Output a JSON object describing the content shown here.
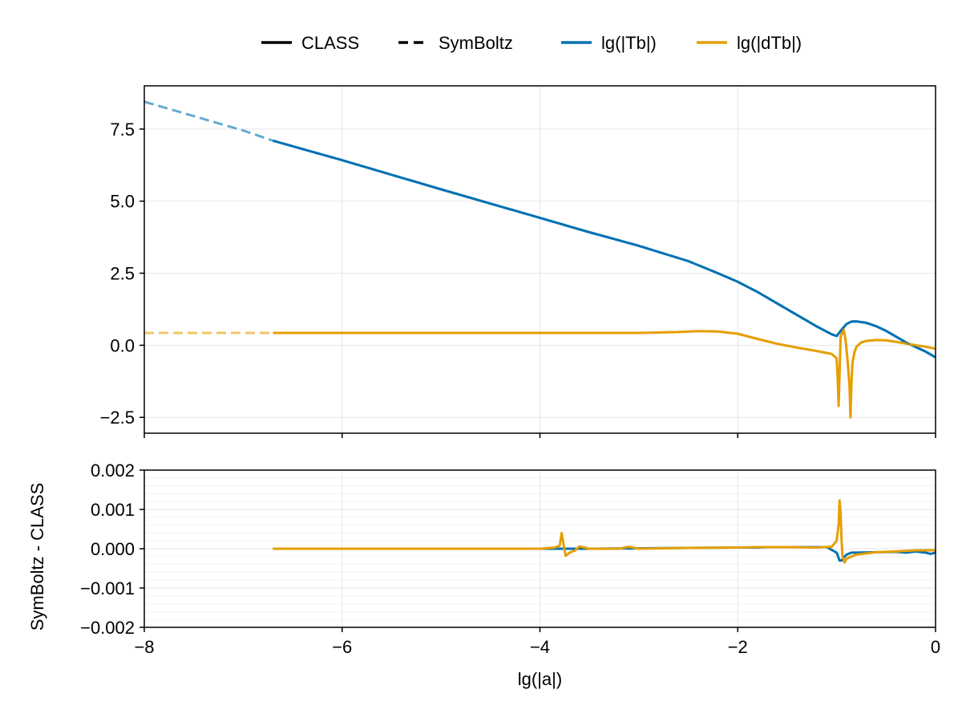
{
  "legend": {
    "placement": "top",
    "items": [
      {
        "label": "CLASS",
        "style": "solid",
        "color": "#000000"
      },
      {
        "label": "SymBoltz",
        "style": "dashed",
        "color": "#000000"
      },
      {
        "label": "lg(|Tb|)",
        "style": "solid",
        "color": "#0072b2"
      },
      {
        "label": "lg(|dTb|)",
        "style": "solid",
        "color": "#e69f00"
      }
    ]
  },
  "colors": {
    "tb": "#0072b2",
    "dtb": "#e69f00",
    "grid": "#e6e6e6",
    "minor_grid": "#f3f3f3"
  },
  "chart_data": [
    {
      "type": "line",
      "panel": "top",
      "xlim": [
        -8,
        0
      ],
      "ylim": [
        -3.05,
        9.0
      ],
      "xticks": [
        -8,
        -6,
        -4,
        -2,
        0
      ],
      "yticks": [
        -2.5,
        0.0,
        2.5,
        5.0,
        7.5
      ],
      "ytick_labels": [
        "−2.5",
        "0.0",
        "2.5",
        "5.0",
        "7.5"
      ],
      "grid": true,
      "series": [
        {
          "name": "lg(|Tb|)",
          "source": "CLASS",
          "style": "solid",
          "x": [
            -6.7,
            -6.0,
            -5.0,
            -4.0,
            -3.5,
            -3.0,
            -2.5,
            -2.2,
            -2.0,
            -1.8,
            -1.6,
            -1.4,
            -1.2,
            -1.05,
            -1.0,
            -0.97,
            -0.93,
            -0.9,
            -0.85,
            -0.8,
            -0.7,
            -0.6,
            -0.5,
            -0.4,
            -0.3,
            -0.2,
            -0.1,
            0.0
          ],
          "y": [
            7.1,
            6.42,
            5.41,
            4.42,
            3.92,
            3.45,
            2.92,
            2.5,
            2.2,
            1.85,
            1.45,
            1.05,
            0.65,
            0.38,
            0.32,
            0.45,
            0.62,
            0.74,
            0.82,
            0.83,
            0.78,
            0.66,
            0.5,
            0.3,
            0.1,
            -0.06,
            -0.22,
            -0.42
          ]
        },
        {
          "name": "lg(|dTb|)",
          "source": "CLASS",
          "style": "solid",
          "x": [
            -6.7,
            -6.0,
            -5.0,
            -4.0,
            -3.0,
            -2.6,
            -2.4,
            -2.2,
            -2.0,
            -1.8,
            -1.6,
            -1.4,
            -1.2,
            -1.05,
            -1.0,
            -0.99,
            -0.98,
            -0.96,
            -0.93,
            -0.91,
            -0.89,
            -0.87,
            -0.86,
            -0.85,
            -0.84,
            -0.82,
            -0.8,
            -0.75,
            -0.7,
            -0.6,
            -0.5,
            -0.4,
            -0.3,
            -0.2,
            -0.1,
            0.0
          ],
          "y": [
            0.43,
            0.43,
            0.43,
            0.43,
            0.43,
            0.46,
            0.49,
            0.48,
            0.4,
            0.22,
            0.05,
            -0.08,
            -0.2,
            -0.3,
            -0.45,
            -1.1,
            -2.1,
            0.3,
            0.55,
            0.2,
            -0.5,
            -1.4,
            -2.5,
            -1.3,
            -0.6,
            -0.25,
            -0.05,
            0.1,
            0.15,
            0.18,
            0.17,
            0.12,
            0.06,
            0.0,
            -0.05,
            -0.12
          ]
        },
        {
          "name": "lg(|Tb|)",
          "source": "SymBoltz",
          "style": "dashed",
          "x": [
            -8.0,
            -7.0,
            -6.7,
            -6.0,
            -5.0,
            -4.0,
            -3.5,
            -3.0,
            -2.5,
            -2.2,
            -2.0,
            -1.8,
            -1.6,
            -1.4,
            -1.2,
            -1.05,
            -1.0,
            -0.97,
            -0.93,
            -0.9,
            -0.85,
            -0.8,
            -0.7,
            -0.6,
            -0.5,
            -0.4,
            -0.3,
            -0.2,
            -0.1,
            0.0
          ],
          "y": [
            8.45,
            7.45,
            7.1,
            6.42,
            5.41,
            4.42,
            3.92,
            3.45,
            2.92,
            2.5,
            2.2,
            1.85,
            1.45,
            1.05,
            0.65,
            0.38,
            0.32,
            0.45,
            0.62,
            0.74,
            0.82,
            0.83,
            0.78,
            0.66,
            0.5,
            0.3,
            0.1,
            -0.06,
            -0.22,
            -0.42
          ]
        },
        {
          "name": "lg(|dTb|)",
          "source": "SymBoltz",
          "style": "dashed",
          "x": [
            -8.0,
            -7.0,
            -6.0,
            -5.0,
            -4.0,
            -3.0,
            -2.6,
            -2.4,
            -2.2,
            -2.0,
            -1.8,
            -1.6,
            -1.4,
            -1.2,
            -1.05,
            -1.0,
            -0.99,
            -0.98,
            -0.96,
            -0.93,
            -0.91,
            -0.89,
            -0.87,
            -0.86,
            -0.85,
            -0.84,
            -0.82,
            -0.8,
            -0.75,
            -0.7,
            -0.6,
            -0.5,
            -0.4,
            -0.3,
            -0.2,
            -0.1,
            0.0
          ],
          "y": [
            0.43,
            0.43,
            0.43,
            0.43,
            0.43,
            0.43,
            0.46,
            0.49,
            0.48,
            0.4,
            0.22,
            0.05,
            -0.08,
            -0.2,
            -0.3,
            -0.45,
            -1.1,
            -2.1,
            0.3,
            0.55,
            0.2,
            -0.5,
            -1.4,
            -2.5,
            -1.3,
            -0.6,
            -0.25,
            -0.05,
            0.1,
            0.15,
            0.18,
            0.17,
            0.12,
            0.06,
            0.0,
            -0.05,
            -0.12
          ]
        }
      ]
    },
    {
      "type": "line",
      "panel": "bottom",
      "xlabel": "lg(|a|)",
      "ylabel": "SymBoltz - CLASS",
      "xlim": [
        -8,
        0
      ],
      "ylim": [
        -0.002,
        0.002
      ],
      "xticks": [
        -8,
        -6,
        -4,
        -2,
        0
      ],
      "xtick_labels": [
        "−8",
        "−6",
        "−4",
        "−2",
        "0"
      ],
      "yticks": [
        -0.002,
        -0.001,
        0.0,
        0.001,
        0.002
      ],
      "ytick_labels": [
        "−0.002",
        "−0.001",
        "0.000",
        "0.001",
        "0.002"
      ],
      "grid": true,
      "minor_grid": true,
      "series": [
        {
          "name": "lg(|Tb|)",
          "x": [
            -6.7,
            -5.0,
            -4.0,
            -3.5,
            -3.0,
            -2.5,
            -2.0,
            -1.8,
            -1.7,
            -1.5,
            -1.3,
            -1.1,
            -1.0,
            -0.97,
            -0.95,
            -0.92,
            -0.9,
            -0.85,
            -0.8,
            -0.6,
            -0.4,
            -0.3,
            -0.2,
            -0.1,
            -0.05,
            0.0
          ],
          "y": [
            0.0,
            0.0,
            0.0,
            0.0,
            1e-05,
            2e-05,
            3e-05,
            3e-05,
            4e-05,
            4e-05,
            4e-05,
            4e-05,
            -0.0001,
            -0.0003,
            -0.0003,
            -0.0002,
            -0.00015,
            -0.0001,
            -0.0001,
            -9e-05,
            -8e-05,
            -0.0001,
            -7e-05,
            -0.0001,
            -0.00013,
            -0.0001
          ]
        },
        {
          "name": "lg(|dTb|)",
          "x": [
            -6.7,
            -5.0,
            -4.0,
            -3.85,
            -3.8,
            -3.78,
            -3.76,
            -3.74,
            -3.7,
            -3.65,
            -3.6,
            -3.5,
            -3.2,
            -3.1,
            -3.0,
            -2.5,
            -2.0,
            -1.8,
            -1.5,
            -1.2,
            -1.05,
            -1.0,
            -0.98,
            -0.97,
            -0.96,
            -0.95,
            -0.94,
            -0.92,
            -0.9,
            -0.85,
            -0.8,
            -0.6,
            -0.4,
            -0.2,
            0.0
          ],
          "y": [
            0.0,
            0.0,
            0.0,
            3e-05,
            8e-05,
            0.0004,
            0.0001,
            -0.00018,
            -0.0001,
            -5e-05,
            6e-05,
            0.0,
            0.0,
            5e-05,
            0.0,
            2e-05,
            3e-05,
            4e-05,
            4e-05,
            3e-05,
            5e-05,
            0.0002,
            0.0006,
            0.00123,
            0.0009,
            0.0002,
            -0.0002,
            -0.00035,
            -0.00025,
            -0.0002,
            -0.00015,
            -9e-05,
            -7e-05,
            -4e-05,
            -4e-05
          ]
        }
      ]
    }
  ]
}
